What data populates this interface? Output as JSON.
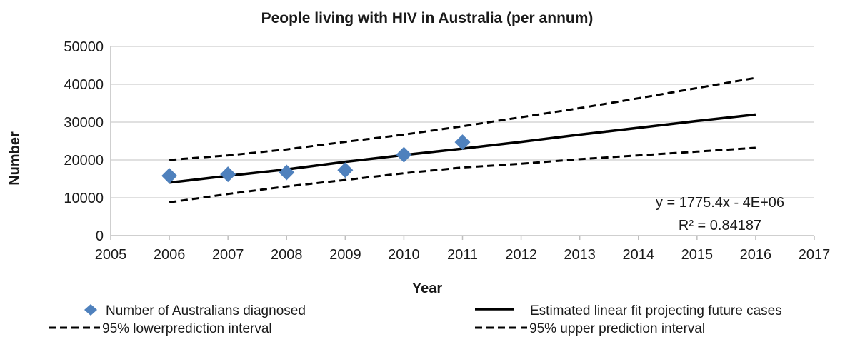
{
  "chart_data": {
    "type": "scatter",
    "title": "People living with HIV in Australia (per annum)",
    "xlabel": "Year",
    "ylabel": "Number",
    "xlim": [
      2005,
      2017
    ],
    "ylim": [
      0,
      50000
    ],
    "x_ticks": [
      "2005",
      "2006",
      "2007",
      "2008",
      "2009",
      "2010",
      "2011",
      "2012",
      "2013",
      "2014",
      "2015",
      "2016",
      "2017"
    ],
    "y_ticks": [
      "0",
      "10000",
      "20000",
      "30000",
      "40000",
      "50000"
    ],
    "grid": "horizontal",
    "legend": "bottom",
    "series": [
      {
        "name": "Number of Australians diagnosed",
        "kind": "markers",
        "marker": "diamond",
        "color": "#4f81bd",
        "x": [
          2006,
          2007,
          2008,
          2009,
          2010,
          2011
        ],
        "y": [
          15800,
          16200,
          16700,
          17300,
          21400,
          24700
        ]
      },
      {
        "name": "Estimated linear fit projecting future cases",
        "kind": "line",
        "dash": "solid",
        "color": "#000000",
        "x": [
          2006,
          2007,
          2008,
          2009,
          2010,
          2011,
          2012,
          2013,
          2014,
          2015,
          2016
        ],
        "y": [
          14000,
          15800,
          17500,
          19500,
          21300,
          23000,
          24800,
          26700,
          28500,
          30300,
          32000
        ]
      },
      {
        "name": "95% lowerprediction interval",
        "kind": "line",
        "dash": "dashed",
        "color": "#000000",
        "x": [
          2006,
          2007,
          2008,
          2009,
          2010,
          2011,
          2012,
          2013,
          2014,
          2015,
          2016
        ],
        "y": [
          8800,
          11000,
          13000,
          14700,
          16500,
          18000,
          19000,
          20200,
          21200,
          22200,
          23200
        ]
      },
      {
        "name": "95% upper prediction interval",
        "kind": "line",
        "dash": "dashed",
        "color": "#000000",
        "x": [
          2006,
          2007,
          2008,
          2009,
          2010,
          2011,
          2012,
          2013,
          2014,
          2015,
          2016
        ],
        "y": [
          20000,
          21200,
          22800,
          24800,
          26700,
          28900,
          31300,
          33700,
          36300,
          39000,
          41700
        ]
      }
    ],
    "annotations": [
      "y = 1775.4x - 4E+06",
      "R² = 0.84187"
    ]
  }
}
